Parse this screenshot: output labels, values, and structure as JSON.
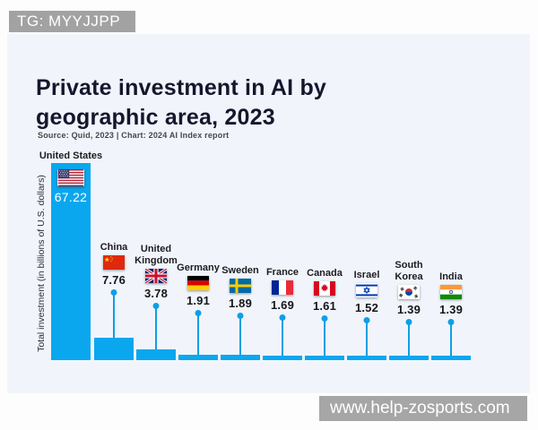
{
  "page": {
    "watermark_top": "TG: MYYJJPP",
    "watermark_bottom": "www.help-zosports.com"
  },
  "chart_data": {
    "type": "bar",
    "title": "Private investment in AI by geographic area, 2023",
    "title_lines": [
      "Private investment in AI by",
      "geographic area, 2023"
    ],
    "source_note": "Source: Quid, 2023 | Chart: 2024 AI Index report",
    "ylabel": "Total investment (in billions of U.S. dollars)",
    "unit": "billions of U.S. dollars",
    "ylim": [
      0,
      70
    ],
    "grid": false,
    "legend": "none",
    "bar_color": "#0aa7ef",
    "panel_bg": "#f1f5fb",
    "categories": [
      "United States",
      "China",
      "United Kingdom",
      "Germany",
      "Sweden",
      "France",
      "Canada",
      "Israel",
      "South Korea",
      "India"
    ],
    "values": [
      67.22,
      7.76,
      3.78,
      1.91,
      1.89,
      1.69,
      1.61,
      1.52,
      1.39,
      1.39
    ],
    "points": [
      {
        "id": "us",
        "label": "United States",
        "value": 67.22,
        "value_label": "67.22",
        "flag": "united-states-flag-icon"
      },
      {
        "id": "cn",
        "label": "China",
        "value": 7.76,
        "value_label": "7.76",
        "flag": "china-flag-icon"
      },
      {
        "id": "uk",
        "label": "United Kingdom",
        "value": 3.78,
        "value_label": "3.78",
        "flag": "united-kingdom-flag-icon"
      },
      {
        "id": "de",
        "label": "Germany",
        "value": 1.91,
        "value_label": "1.91",
        "flag": "germany-flag-icon"
      },
      {
        "id": "se",
        "label": "Sweden",
        "value": 1.89,
        "value_label": "1.89",
        "flag": "sweden-flag-icon"
      },
      {
        "id": "fr",
        "label": "France",
        "value": 1.69,
        "value_label": "1.69",
        "flag": "france-flag-icon"
      },
      {
        "id": "ca",
        "label": "Canada",
        "value": 1.61,
        "value_label": "1.61",
        "flag": "canada-flag-icon"
      },
      {
        "id": "il",
        "label": "Israel",
        "value": 1.52,
        "value_label": "1.52",
        "flag": "israel-flag-icon"
      },
      {
        "id": "kr",
        "label": "South Korea",
        "value": 1.39,
        "value_label": "1.39",
        "flag": "south-korea-flag-icon"
      },
      {
        "id": "in",
        "label": "India",
        "value": 1.39,
        "value_label": "1.39",
        "flag": "india-flag-icon"
      }
    ]
  }
}
